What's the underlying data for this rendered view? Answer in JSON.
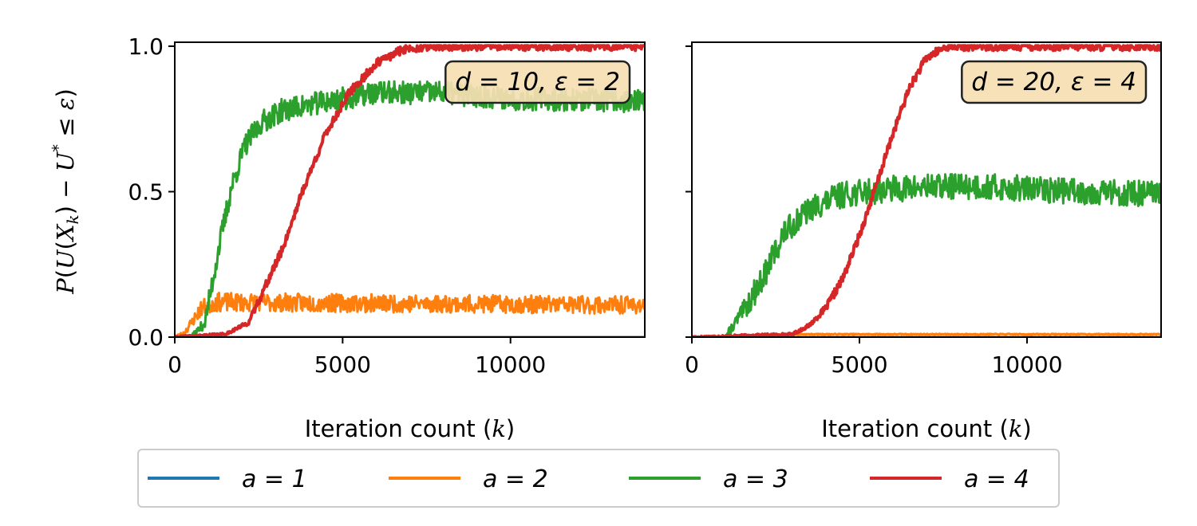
{
  "chart_data": [
    {
      "type": "line",
      "annotation": "d = 10, ε = 2",
      "xlabel": "Iteration count (k)",
      "ylabel": "P(U(X_k) − U* ≤ ε)",
      "xlim": [
        0,
        14000
      ],
      "ylim": [
        0,
        1
      ],
      "xticks": [
        "0",
        "5000",
        "10000"
      ],
      "yticks": [
        "0.0",
        "0.5",
        "1.0"
      ],
      "series": [
        {
          "name": "a = 1",
          "color": "#1f77b4",
          "points": [
            [
              0,
              0
            ],
            [
              14000,
              0
            ]
          ],
          "noise": 0.002,
          "seed": 11
        },
        {
          "name": "a = 2",
          "color": "#ff7f0e",
          "points": [
            [
              0,
              0
            ],
            [
              250,
              0.01
            ],
            [
              500,
              0.05
            ],
            [
              800,
              0.1
            ],
            [
              1200,
              0.12
            ],
            [
              14000,
              0.11
            ]
          ],
          "noise": 0.035,
          "seed": 23
        },
        {
          "name": "a = 3",
          "color": "#2ca02c",
          "points": [
            [
              0,
              0
            ],
            [
              500,
              0
            ],
            [
              900,
              0.05
            ],
            [
              1300,
              0.3
            ],
            [
              1700,
              0.52
            ],
            [
              2100,
              0.66
            ],
            [
              2600,
              0.74
            ],
            [
              3200,
              0.78
            ],
            [
              4500,
              0.81
            ],
            [
              6000,
              0.84
            ],
            [
              8000,
              0.84
            ],
            [
              10000,
              0.82
            ],
            [
              14000,
              0.81
            ]
          ],
          "noise": 0.04,
          "seed": 37
        },
        {
          "name": "a = 4",
          "color": "#d62728",
          "points": [
            [
              0,
              0
            ],
            [
              1500,
              0.01
            ],
            [
              2200,
              0.05
            ],
            [
              2600,
              0.15
            ],
            [
              3200,
              0.3
            ],
            [
              3800,
              0.5
            ],
            [
              4500,
              0.7
            ],
            [
              5200,
              0.84
            ],
            [
              6000,
              0.94
            ],
            [
              6800,
              0.99
            ],
            [
              7500,
              1
            ],
            [
              14000,
              1
            ]
          ],
          "noise": 0.015,
          "seed": 41
        }
      ]
    },
    {
      "type": "line",
      "annotation": "d = 20, ε = 4",
      "xlabel": "Iteration count (k)",
      "ylabel": "",
      "xlim": [
        0,
        14000
      ],
      "ylim": [
        0,
        1
      ],
      "xticks": [
        "0",
        "5000",
        "10000"
      ],
      "yticks": [],
      "series": [
        {
          "name": "a = 1",
          "color": "#1f77b4",
          "points": [
            [
              0,
              0
            ],
            [
              14000,
              0
            ]
          ],
          "noise": 0.0,
          "seed": 5
        },
        {
          "name": "a = 2",
          "color": "#ff7f0e",
          "points": [
            [
              0,
              0
            ],
            [
              1000,
              0.003
            ],
            [
              3000,
              0.01
            ],
            [
              14000,
              0.01
            ]
          ],
          "noise": 0.006,
          "seed": 7
        },
        {
          "name": "a = 3",
          "color": "#2ca02c",
          "points": [
            [
              0,
              0
            ],
            [
              1000,
              0
            ],
            [
              1600,
              0.1
            ],
            [
              2200,
              0.22
            ],
            [
              2700,
              0.35
            ],
            [
              3200,
              0.41
            ],
            [
              3700,
              0.45
            ],
            [
              4500,
              0.49
            ],
            [
              6000,
              0.51
            ],
            [
              8000,
              0.52
            ],
            [
              10000,
              0.51
            ],
            [
              12000,
              0.5
            ],
            [
              14000,
              0.49
            ]
          ],
          "noise": 0.045,
          "seed": 13
        },
        {
          "name": "a = 4",
          "color": "#d62728",
          "points": [
            [
              0,
              0
            ],
            [
              3000,
              0.01
            ],
            [
              3500,
              0.04
            ],
            [
              4000,
              0.1
            ],
            [
              4500,
              0.2
            ],
            [
              5000,
              0.35
            ],
            [
              5500,
              0.52
            ],
            [
              6000,
              0.7
            ],
            [
              6500,
              0.86
            ],
            [
              7000,
              0.96
            ],
            [
              7600,
              1
            ],
            [
              14000,
              1
            ]
          ],
          "noise": 0.015,
          "seed": 17
        }
      ]
    }
  ],
  "legend": [
    {
      "label": "a = 1",
      "color": "#1f77b4"
    },
    {
      "label": "a = 2",
      "color": "#ff7f0e"
    },
    {
      "label": "a = 3",
      "color": "#2ca02c"
    },
    {
      "label": "a = 4",
      "color": "#d62728"
    }
  ]
}
